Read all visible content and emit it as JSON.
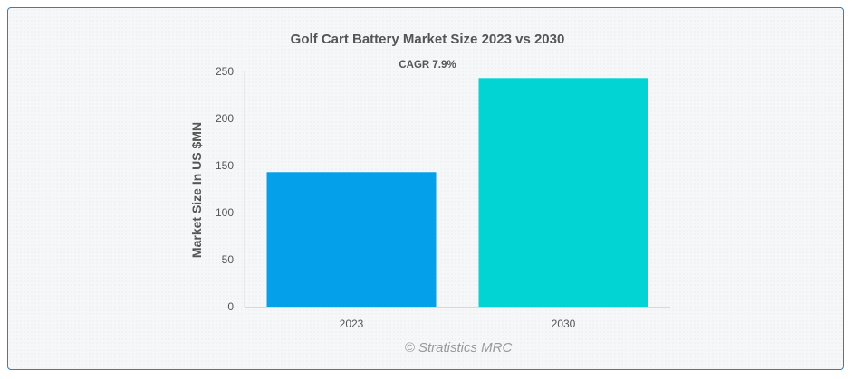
{
  "chart_data": {
    "type": "bar",
    "title": "Golf Cart Battery Market Size 2023 vs 2030",
    "annotation": "CAGR 7.9%",
    "ylabel": "Market Size In US $MN",
    "xlabel": "",
    "categories": [
      "2023",
      "2030"
    ],
    "values": [
      143,
      243
    ],
    "colors": [
      "#04a0ea",
      "#02d4d4"
    ],
    "ylim": [
      0,
      250
    ],
    "yticks": [
      0,
      50,
      100,
      150,
      200,
      250
    ],
    "grid": false,
    "legend": "none"
  },
  "watermark": "© Stratistics MRC"
}
